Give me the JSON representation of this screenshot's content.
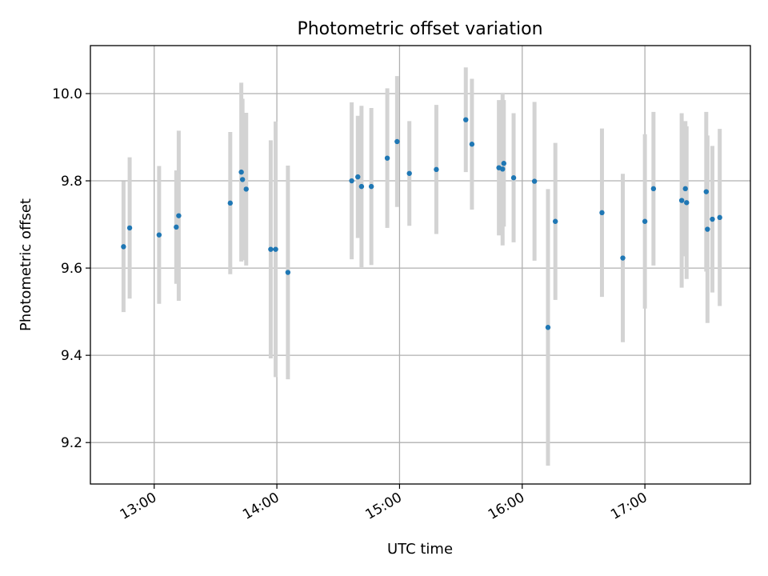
{
  "chart_data": {
    "type": "scatter",
    "title": "Photometric offset variation",
    "xlabel": "UTC time",
    "ylabel": "Photometric offset",
    "x_unit": "hours UTC",
    "xlim": [
      12.48,
      17.86
    ],
    "ylim": [
      9.105,
      10.11
    ],
    "x_ticks": [
      {
        "value": 13.0,
        "label": "13:00"
      },
      {
        "value": 14.0,
        "label": "14:00"
      },
      {
        "value": 15.0,
        "label": "15:00"
      },
      {
        "value": 16.0,
        "label": "16:00"
      },
      {
        "value": 17.0,
        "label": "17:00"
      }
    ],
    "y_ticks": [
      {
        "value": 9.2,
        "label": "9.2"
      },
      {
        "value": 9.4,
        "label": "9.4"
      },
      {
        "value": 9.6,
        "label": "9.6"
      },
      {
        "value": 9.8,
        "label": "9.8"
      },
      {
        "value": 10.0,
        "label": "10.0"
      }
    ],
    "grid": true,
    "point_color": "#1f77b4",
    "errorbar_color": "#d3d3d3",
    "points": [
      {
        "x": 12.75,
        "y": 9.649,
        "err": 0.15
      },
      {
        "x": 12.8,
        "y": 9.692,
        "err": 0.162
      },
      {
        "x": 13.04,
        "y": 9.676,
        "err": 0.158
      },
      {
        "x": 13.18,
        "y": 9.694,
        "err": 0.13
      },
      {
        "x": 13.2,
        "y": 9.72,
        "err": 0.195
      },
      {
        "x": 13.62,
        "y": 9.749,
        "err": 0.163
      },
      {
        "x": 13.71,
        "y": 9.82,
        "err": 0.205
      },
      {
        "x": 13.72,
        "y": 9.803,
        "err": 0.185
      },
      {
        "x": 13.75,
        "y": 9.781,
        "err": 0.175
      },
      {
        "x": 13.95,
        "y": 9.643,
        "err": 0.25
      },
      {
        "x": 13.99,
        "y": 9.643,
        "err": 0.293
      },
      {
        "x": 14.09,
        "y": 9.59,
        "err": 0.245
      },
      {
        "x": 14.61,
        "y": 9.8,
        "err": 0.18
      },
      {
        "x": 14.66,
        "y": 9.809,
        "err": 0.14
      },
      {
        "x": 14.69,
        "y": 9.787,
        "err": 0.185
      },
      {
        "x": 14.77,
        "y": 9.787,
        "err": 0.18
      },
      {
        "x": 14.9,
        "y": 9.852,
        "err": 0.16
      },
      {
        "x": 14.98,
        "y": 9.89,
        "err": 0.15
      },
      {
        "x": 15.08,
        "y": 9.817,
        "err": 0.12
      },
      {
        "x": 15.3,
        "y": 9.826,
        "err": 0.148
      },
      {
        "x": 15.54,
        "y": 9.94,
        "err": 0.12
      },
      {
        "x": 15.59,
        "y": 9.884,
        "err": 0.15
      },
      {
        "x": 15.81,
        "y": 9.83,
        "err": 0.155
      },
      {
        "x": 15.84,
        "y": 9.827,
        "err": 0.175
      },
      {
        "x": 15.85,
        "y": 9.84,
        "err": 0.145
      },
      {
        "x": 15.93,
        "y": 9.807,
        "err": 0.148
      },
      {
        "x": 16.1,
        "y": 9.799,
        "err": 0.182
      },
      {
        "x": 16.21,
        "y": 9.464,
        "err": 0.317
      },
      {
        "x": 16.27,
        "y": 9.707,
        "err": 0.18
      },
      {
        "x": 16.65,
        "y": 9.727,
        "err": 0.193
      },
      {
        "x": 16.82,
        "y": 9.623,
        "err": 0.193
      },
      {
        "x": 17.0,
        "y": 9.707,
        "err": 0.2
      },
      {
        "x": 17.07,
        "y": 9.782,
        "err": 0.176
      },
      {
        "x": 17.3,
        "y": 9.755,
        "err": 0.2
      },
      {
        "x": 17.33,
        "y": 9.782,
        "err": 0.155
      },
      {
        "x": 17.34,
        "y": 9.75,
        "err": 0.175
      },
      {
        "x": 17.5,
        "y": 9.775,
        "err": 0.183
      },
      {
        "x": 17.51,
        "y": 9.689,
        "err": 0.215
      },
      {
        "x": 17.55,
        "y": 9.712,
        "err": 0.168
      },
      {
        "x": 17.61,
        "y": 9.716,
        "err": 0.203
      }
    ]
  }
}
